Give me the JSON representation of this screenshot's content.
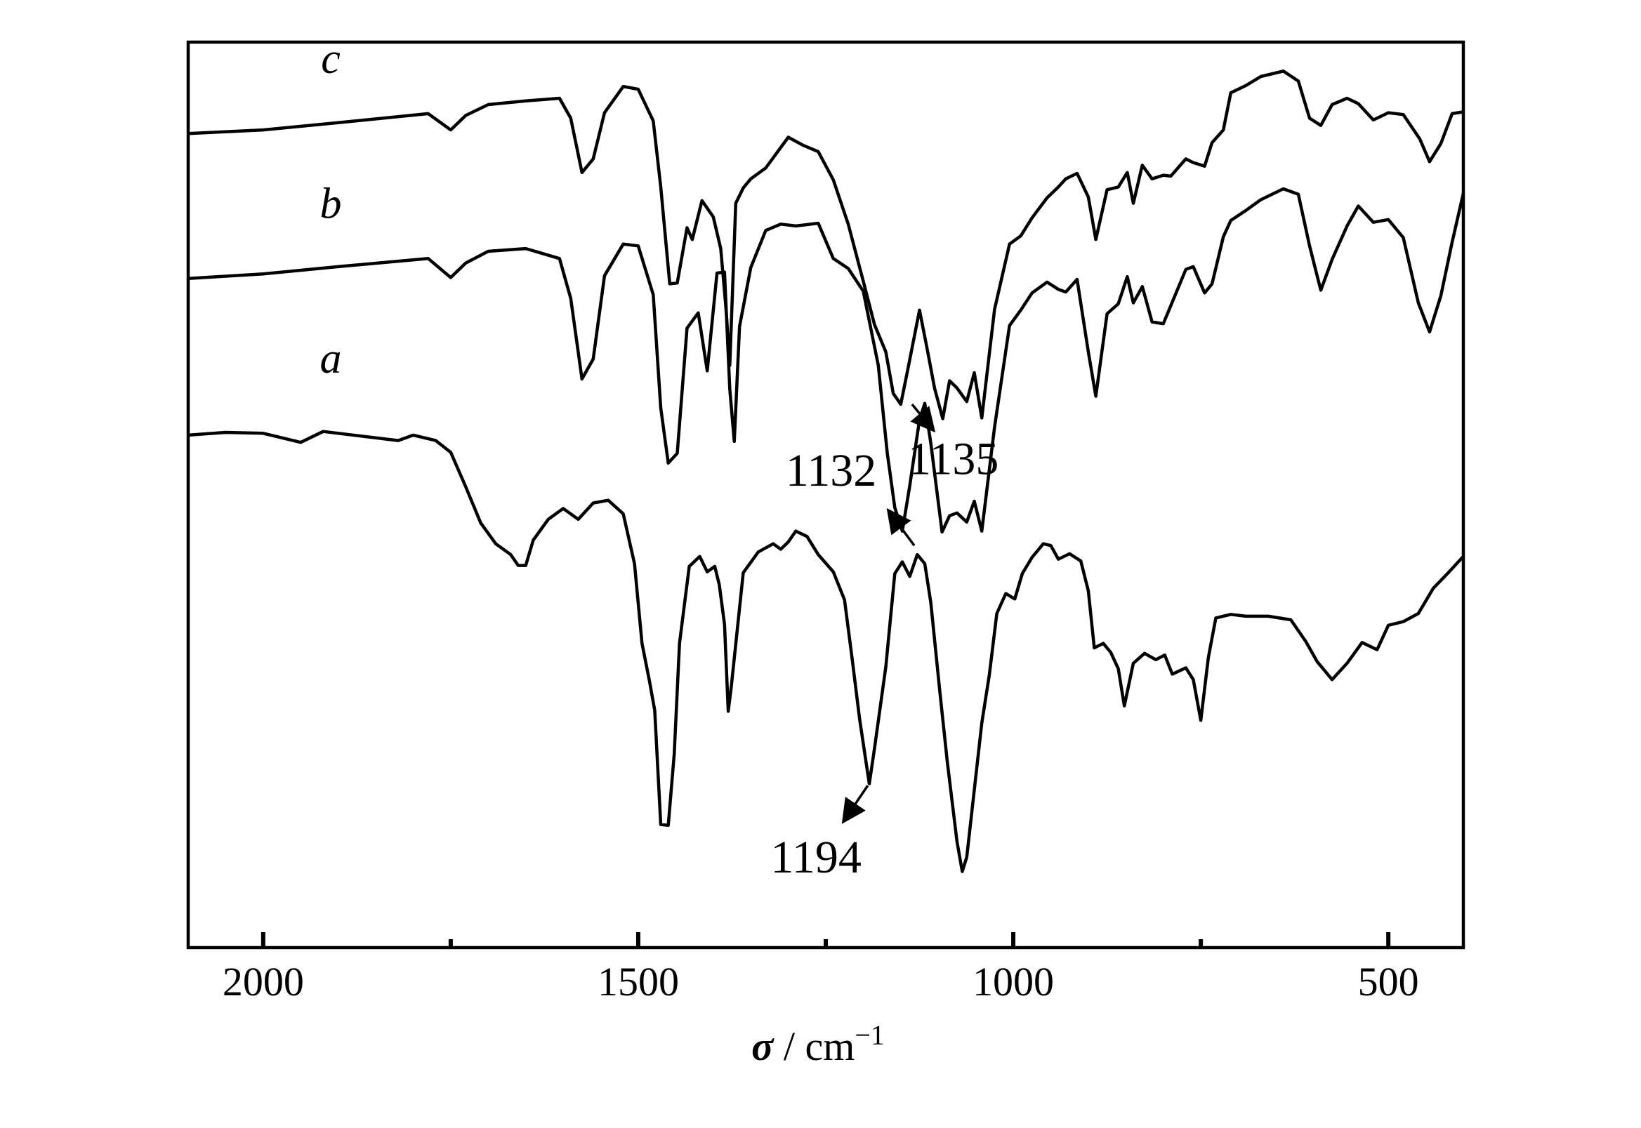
{
  "chart_data": {
    "type": "line",
    "title": "",
    "xlabel": {
      "symbol": "σ",
      "unit": " / cm",
      "exponent": "−1"
    },
    "ylabel": "",
    "xlim": [
      2100,
      400
    ],
    "x_reversed": true,
    "ylim": [
      0,
      1
    ],
    "y_ticks_shown": false,
    "x_major_ticks": [
      2000,
      1500,
      1000,
      500
    ],
    "x_minor_ticks": [
      1750,
      1250,
      750
    ],
    "grid": false,
    "legend": "none",
    "series": [
      {
        "name": "c",
        "points": [
          [
            2100,
            0.899
          ],
          [
            2000,
            0.903
          ],
          [
            1900,
            0.911
          ],
          [
            1780,
            0.921
          ],
          [
            1750,
            0.903
          ],
          [
            1730,
            0.919
          ],
          [
            1700,
            0.931
          ],
          [
            1650,
            0.935
          ],
          [
            1605,
            0.938
          ],
          [
            1590,
            0.916
          ],
          [
            1575,
            0.856
          ],
          [
            1560,
            0.871
          ],
          [
            1545,
            0.922
          ],
          [
            1520,
            0.951
          ],
          [
            1500,
            0.948
          ],
          [
            1480,
            0.913
          ],
          [
            1470,
            0.84
          ],
          [
            1458,
            0.733
          ],
          [
            1448,
            0.734
          ],
          [
            1435,
            0.795
          ],
          [
            1428,
            0.782
          ],
          [
            1415,
            0.825
          ],
          [
            1400,
            0.807
          ],
          [
            1390,
            0.772
          ],
          [
            1383,
            0.706
          ],
          [
            1378,
            0.643
          ],
          [
            1370,
            0.822
          ],
          [
            1360,
            0.839
          ],
          [
            1350,
            0.849
          ],
          [
            1330,
            0.861
          ],
          [
            1300,
            0.895
          ],
          [
            1280,
            0.886
          ],
          [
            1260,
            0.879
          ],
          [
            1240,
            0.848
          ],
          [
            1220,
            0.799
          ],
          [
            1200,
            0.736
          ],
          [
            1185,
            0.688
          ],
          [
            1170,
            0.658
          ],
          [
            1160,
            0.612
          ],
          [
            1150,
            0.6
          ],
          [
            1140,
            0.641
          ],
          [
            1125,
            0.704
          ],
          [
            1115,
            0.662
          ],
          [
            1105,
            0.618
          ],
          [
            1094,
            0.584
          ],
          [
            1085,
            0.626
          ],
          [
            1075,
            0.618
          ],
          [
            1062,
            0.603
          ],
          [
            1052,
            0.635
          ],
          [
            1042,
            0.585
          ],
          [
            1025,
            0.705
          ],
          [
            1005,
            0.777
          ],
          [
            990,
            0.786
          ],
          [
            975,
            0.806
          ],
          [
            955,
            0.828
          ],
          [
            940,
            0.84
          ],
          [
            930,
            0.849
          ],
          [
            915,
            0.855
          ],
          [
            900,
            0.829
          ],
          [
            890,
            0.782
          ],
          [
            875,
            0.837
          ],
          [
            860,
            0.84
          ],
          [
            848,
            0.856
          ],
          [
            840,
            0.822
          ],
          [
            828,
            0.864
          ],
          [
            815,
            0.849
          ],
          [
            800,
            0.853
          ],
          [
            790,
            0.852
          ],
          [
            770,
            0.871
          ],
          [
            760,
            0.867
          ],
          [
            745,
            0.863
          ],
          [
            735,
            0.889
          ],
          [
            720,
            0.903
          ],
          [
            710,
            0.944
          ],
          [
            690,
            0.952
          ],
          [
            670,
            0.962
          ],
          [
            640,
            0.968
          ],
          [
            620,
            0.957
          ],
          [
            605,
            0.916
          ],
          [
            590,
            0.908
          ],
          [
            575,
            0.931
          ],
          [
            555,
            0.938
          ],
          [
            540,
            0.932
          ],
          [
            520,
            0.914
          ],
          [
            500,
            0.922
          ],
          [
            480,
            0.92
          ],
          [
            458,
            0.893
          ],
          [
            445,
            0.868
          ],
          [
            430,
            0.888
          ],
          [
            415,
            0.921
          ],
          [
            400,
            0.923
          ]
        ]
      },
      {
        "name": "b",
        "points": [
          [
            2100,
            0.739
          ],
          [
            2000,
            0.744
          ],
          [
            1900,
            0.752
          ],
          [
            1780,
            0.761
          ],
          [
            1750,
            0.74
          ],
          [
            1730,
            0.756
          ],
          [
            1700,
            0.769
          ],
          [
            1650,
            0.772
          ],
          [
            1605,
            0.761
          ],
          [
            1590,
            0.717
          ],
          [
            1575,
            0.628
          ],
          [
            1560,
            0.65
          ],
          [
            1545,
            0.742
          ],
          [
            1520,
            0.777
          ],
          [
            1500,
            0.775
          ],
          [
            1480,
            0.721
          ],
          [
            1470,
            0.596
          ],
          [
            1460,
            0.535
          ],
          [
            1448,
            0.546
          ],
          [
            1435,
            0.684
          ],
          [
            1420,
            0.701
          ],
          [
            1408,
            0.637
          ],
          [
            1395,
            0.745
          ],
          [
            1385,
            0.746
          ],
          [
            1378,
            0.617
          ],
          [
            1372,
            0.559
          ],
          [
            1365,
            0.686
          ],
          [
            1350,
            0.751
          ],
          [
            1330,
            0.792
          ],
          [
            1310,
            0.799
          ],
          [
            1290,
            0.797
          ],
          [
            1260,
            0.8
          ],
          [
            1240,
            0.761
          ],
          [
            1220,
            0.75
          ],
          [
            1200,
            0.725
          ],
          [
            1180,
            0.643
          ],
          [
            1168,
            0.546
          ],
          [
            1158,
            0.486
          ],
          [
            1148,
            0.46
          ],
          [
            1138,
            0.51
          ],
          [
            1125,
            0.583
          ],
          [
            1118,
            0.601
          ],
          [
            1110,
            0.557
          ],
          [
            1095,
            0.459
          ],
          [
            1085,
            0.477
          ],
          [
            1075,
            0.48
          ],
          [
            1062,
            0.47
          ],
          [
            1052,
            0.493
          ],
          [
            1042,
            0.46
          ],
          [
            1025,
            0.575
          ],
          [
            1005,
            0.687
          ],
          [
            990,
            0.704
          ],
          [
            975,
            0.723
          ],
          [
            955,
            0.735
          ],
          [
            940,
            0.727
          ],
          [
            930,
            0.724
          ],
          [
            915,
            0.738
          ],
          [
            900,
            0.658
          ],
          [
            890,
            0.609
          ],
          [
            875,
            0.7
          ],
          [
            860,
            0.711
          ],
          [
            848,
            0.741
          ],
          [
            840,
            0.712
          ],
          [
            828,
            0.73
          ],
          [
            815,
            0.691
          ],
          [
            800,
            0.689
          ],
          [
            790,
            0.709
          ],
          [
            770,
            0.749
          ],
          [
            760,
            0.752
          ],
          [
            745,
            0.723
          ],
          [
            735,
            0.733
          ],
          [
            720,
            0.785
          ],
          [
            710,
            0.803
          ],
          [
            690,
            0.814
          ],
          [
            670,
            0.826
          ],
          [
            640,
            0.838
          ],
          [
            620,
            0.832
          ],
          [
            605,
            0.775
          ],
          [
            590,
            0.726
          ],
          [
            575,
            0.76
          ],
          [
            555,
            0.797
          ],
          [
            540,
            0.819
          ],
          [
            520,
            0.801
          ],
          [
            500,
            0.804
          ],
          [
            480,
            0.784
          ],
          [
            460,
            0.712
          ],
          [
            445,
            0.68
          ],
          [
            430,
            0.72
          ],
          [
            415,
            0.779
          ],
          [
            400,
            0.833
          ]
        ]
      },
      {
        "name": "a",
        "points": [
          [
            2100,
            0.566
          ],
          [
            2050,
            0.569
          ],
          [
            2000,
            0.568
          ],
          [
            1950,
            0.558
          ],
          [
            1920,
            0.57
          ],
          [
            1820,
            0.56
          ],
          [
            1800,
            0.566
          ],
          [
            1770,
            0.56
          ],
          [
            1750,
            0.547
          ],
          [
            1730,
            0.509
          ],
          [
            1710,
            0.469
          ],
          [
            1690,
            0.446
          ],
          [
            1670,
            0.434
          ],
          [
            1660,
            0.422
          ],
          [
            1650,
            0.422
          ],
          [
            1640,
            0.45
          ],
          [
            1620,
            0.473
          ],
          [
            1600,
            0.485
          ],
          [
            1580,
            0.473
          ],
          [
            1560,
            0.491
          ],
          [
            1540,
            0.494
          ],
          [
            1520,
            0.479
          ],
          [
            1505,
            0.424
          ],
          [
            1495,
            0.336
          ],
          [
            1485,
            0.294
          ],
          [
            1478,
            0.262
          ],
          [
            1470,
            0.136
          ],
          [
            1460,
            0.135
          ],
          [
            1452,
            0.214
          ],
          [
            1445,
            0.336
          ],
          [
            1432,
            0.421
          ],
          [
            1418,
            0.432
          ],
          [
            1408,
            0.415
          ],
          [
            1398,
            0.421
          ],
          [
            1392,
            0.401
          ],
          [
            1385,
            0.357
          ],
          [
            1380,
            0.261
          ],
          [
            1376,
            0.288
          ],
          [
            1370,
            0.335
          ],
          [
            1360,
            0.414
          ],
          [
            1340,
            0.437
          ],
          [
            1320,
            0.446
          ],
          [
            1310,
            0.44
          ],
          [
            1300,
            0.448
          ],
          [
            1290,
            0.46
          ],
          [
            1275,
            0.454
          ],
          [
            1260,
            0.434
          ],
          [
            1240,
            0.415
          ],
          [
            1225,
            0.384
          ],
          [
            1215,
            0.32
          ],
          [
            1205,
            0.253
          ],
          [
            1196,
            0.203
          ],
          [
            1192,
            0.181
          ],
          [
            1185,
            0.22
          ],
          [
            1170,
            0.31
          ],
          [
            1158,
            0.413
          ],
          [
            1148,
            0.426
          ],
          [
            1138,
            0.41
          ],
          [
            1128,
            0.434
          ],
          [
            1118,
            0.424
          ],
          [
            1110,
            0.381
          ],
          [
            1098,
            0.283
          ],
          [
            1088,
            0.205
          ],
          [
            1075,
            0.117
          ],
          [
            1068,
            0.084
          ],
          [
            1062,
            0.1
          ],
          [
            1052,
            0.174
          ],
          [
            1042,
            0.248
          ],
          [
            1032,
            0.301
          ],
          [
            1022,
            0.369
          ],
          [
            1010,
            0.391
          ],
          [
            998,
            0.385
          ],
          [
            988,
            0.413
          ],
          [
            975,
            0.431
          ],
          [
            960,
            0.446
          ],
          [
            950,
            0.444
          ],
          [
            940,
            0.429
          ],
          [
            925,
            0.435
          ],
          [
            910,
            0.427
          ],
          [
            900,
            0.394
          ],
          [
            892,
            0.331
          ],
          [
            880,
            0.336
          ],
          [
            870,
            0.326
          ],
          [
            860,
            0.308
          ],
          [
            852,
            0.267
          ],
          [
            840,
            0.314
          ],
          [
            825,
            0.325
          ],
          [
            810,
            0.318
          ],
          [
            798,
            0.323
          ],
          [
            788,
            0.302
          ],
          [
            770,
            0.309
          ],
          [
            760,
            0.296
          ],
          [
            750,
            0.251
          ],
          [
            740,
            0.32
          ],
          [
            730,
            0.364
          ],
          [
            710,
            0.368
          ],
          [
            690,
            0.366
          ],
          [
            660,
            0.366
          ],
          [
            630,
            0.362
          ],
          [
            610,
            0.338
          ],
          [
            595,
            0.316
          ],
          [
            575,
            0.296
          ],
          [
            555,
            0.314
          ],
          [
            535,
            0.337
          ],
          [
            515,
            0.329
          ],
          [
            500,
            0.356
          ],
          [
            480,
            0.36
          ],
          [
            460,
            0.369
          ],
          [
            440,
            0.397
          ],
          [
            420,
            0.414
          ],
          [
            400,
            0.432
          ]
        ]
      }
    ],
    "series_labels": [
      {
        "text": "c",
        "x": 1910,
        "y": 0.966
      },
      {
        "text": "b",
        "x": 1910,
        "y": 0.806
      },
      {
        "text": "a",
        "x": 1910,
        "y": 0.635
      }
    ],
    "annotations": [
      {
        "text": "1135",
        "x": 1080,
        "y": 0.523,
        "arrow_from": [
          1135,
          0.6
        ],
        "arrow_to": [
          1108,
          0.573
        ]
      },
      {
        "text": "1132",
        "x": 1243,
        "y": 0.51,
        "arrow_from": [
          1132,
          0.444
        ],
        "arrow_to": [
          1165,
          0.481
        ]
      },
      {
        "text": "1194",
        "x": 1263,
        "y": 0.083,
        "arrow_from": [
          1194,
          0.179
        ],
        "arrow_to": [
          1225,
          0.141
        ]
      }
    ]
  }
}
